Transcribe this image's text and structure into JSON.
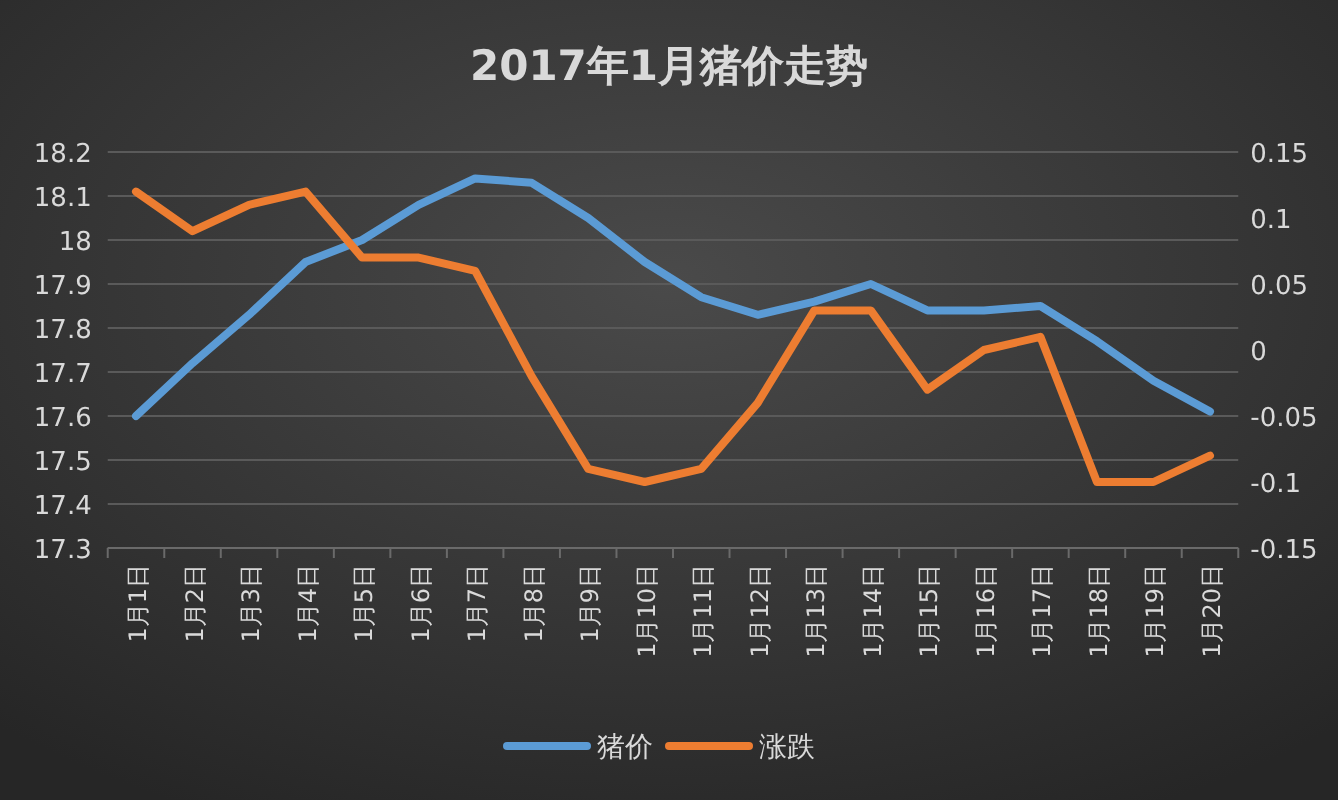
{
  "chart_data": {
    "type": "line",
    "title": "2017年1月猪价走势",
    "categories": [
      "1月1日",
      "1月2日",
      "1月3日",
      "1月4日",
      "1月5日",
      "1月6日",
      "1月7日",
      "1月8日",
      "1月9日",
      "1月10日",
      "1月11日",
      "1月12日",
      "1月13日",
      "1月14日",
      "1月15日",
      "1月16日",
      "1月17日",
      "1月18日",
      "1月19日",
      "1月20日"
    ],
    "series": [
      {
        "name": "猪价",
        "color": "#5b9bd5",
        "values": [
          17.6,
          17.72,
          17.83,
          17.95,
          18.0,
          18.08,
          18.14,
          18.13,
          18.05,
          17.95,
          17.87,
          17.83,
          17.86,
          17.9,
          17.84,
          17.84,
          17.85,
          17.77,
          17.68,
          17.61
        ]
      },
      {
        "name": "涨跌",
        "color": "#ed7d31",
        "axis": "y2",
        "values": [
          0.12,
          0.09,
          0.11,
          0.12,
          0.07,
          0.07,
          0.06,
          -0.02,
          -0.09,
          -0.1,
          -0.09,
          -0.04,
          0.03,
          0.03,
          -0.03,
          0.0,
          0.01,
          -0.1,
          -0.1,
          -0.08
        ]
      }
    ],
    "ylim": [
      17.3,
      18.2
    ],
    "yticks": [
      17.3,
      17.4,
      17.5,
      17.6,
      17.7,
      17.8,
      17.9,
      18,
      18.1,
      18.2
    ],
    "y2lim": [
      -0.15,
      0.15
    ],
    "y2ticks": [
      -0.15,
      -0.1,
      -0.05,
      0,
      0.05,
      0.1,
      0.15
    ],
    "grid": "y",
    "legend": "bottom"
  }
}
